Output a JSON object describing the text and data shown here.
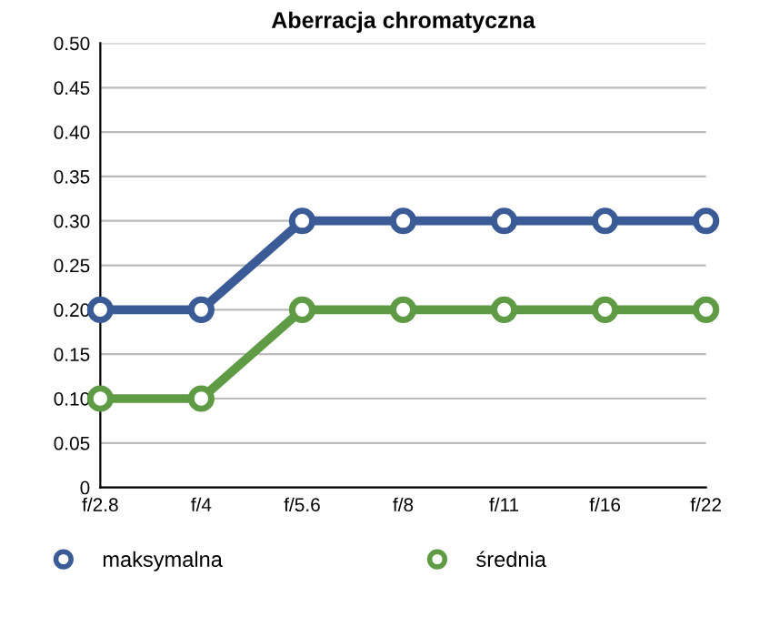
{
  "chart_data": {
    "type": "line",
    "title": "Aberracja chromatyczna",
    "categories": [
      "f/2.8",
      "f/4",
      "f/5.6",
      "f/8",
      "f/11",
      "f/16",
      "f/22"
    ],
    "series": [
      {
        "name": "maksymalna",
        "color": "#3a5b96",
        "values": [
          0.2,
          0.2,
          0.3,
          0.3,
          0.3,
          0.3,
          0.3
        ]
      },
      {
        "name": "średnia",
        "color": "#5e9b44",
        "values": [
          0.1,
          0.1,
          0.2,
          0.2,
          0.2,
          0.2,
          0.2
        ]
      }
    ],
    "ylim": [
      0,
      0.5
    ],
    "yticks": [
      0,
      0.05,
      {
        "value": 0.1,
        "label": "0.10"
      },
      0.15,
      {
        "value": 0.2,
        "label": "0.20"
      },
      0.25,
      {
        "value": 0.3,
        "label": "0.30"
      },
      0.35,
      {
        "value": 0.4,
        "label": "0.40"
      },
      0.45,
      {
        "value": 0.5,
        "label": "0.50"
      }
    ],
    "grid": "y",
    "legend": "bottom",
    "marker": "circle",
    "line_style": "solid"
  }
}
